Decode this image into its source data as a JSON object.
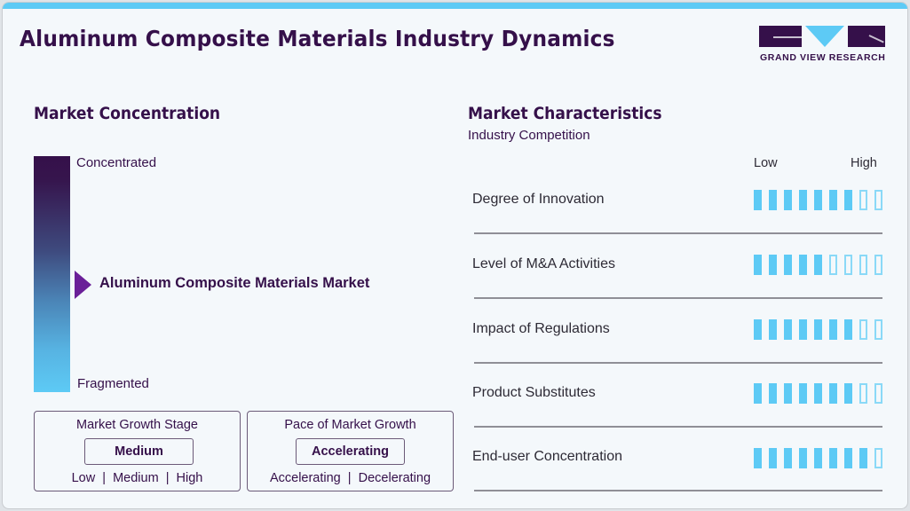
{
  "header": {
    "title": "Aluminum Composite Materials Industry Dynamics",
    "logo_text": "GRAND VIEW RESEARCH"
  },
  "market_concentration": {
    "heading": "Market Concentration",
    "top_label": "Concentrated",
    "bottom_label": "Fragmented",
    "marker_label": "Aluminum Composite Materials Market"
  },
  "growth_stage": {
    "title": "Market Growth Stage",
    "selected": "Medium",
    "options": "Low  |  Medium  |  High"
  },
  "growth_pace": {
    "title": "Pace of Market Growth",
    "selected": "Accelerating",
    "options": "Accelerating  |  Decelerating"
  },
  "market_characteristics": {
    "heading": "Market Characteristics",
    "subheading": "Industry Competition",
    "scale_low": "Low",
    "scale_high": "High",
    "max_rating": 9,
    "rows": [
      {
        "label": "Degree of Innovation",
        "rating": 7
      },
      {
        "label": "Level of M&A Activities",
        "rating": 5
      },
      {
        "label": "Impact of Regulations",
        "rating": 7
      },
      {
        "label": "Product Substitutes",
        "rating": 7
      },
      {
        "label": "End-user Concentration",
        "rating": 8
      }
    ]
  },
  "colors": {
    "brand_purple": "#35104a",
    "accent_cyan": "#5dcaf5",
    "marker_purple": "#6a1f98"
  }
}
